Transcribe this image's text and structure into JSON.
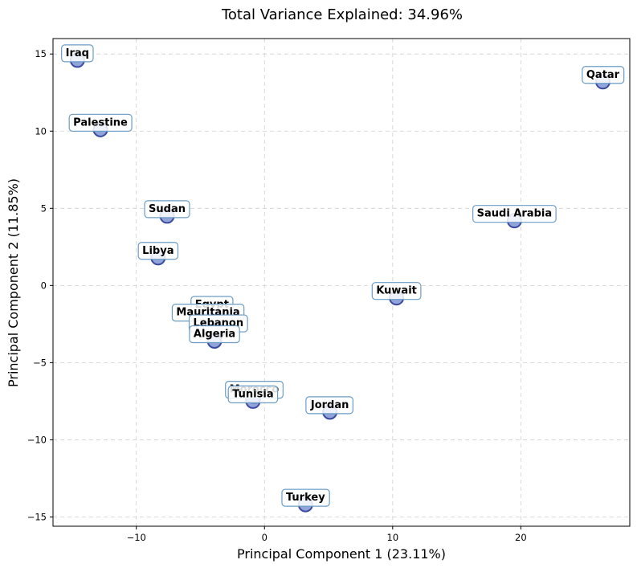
{
  "chart_data": {
    "type": "scatter",
    "title": "Total Variance Explained: 34.96%",
    "xlabel": "Principal Component 1 (23.11%)",
    "ylabel": "Principal Component 2 (11.85%)",
    "xlim": [
      -16.5,
      28.5
    ],
    "ylim": [
      -15.6,
      16.0
    ],
    "xticks": [
      -10,
      0,
      10,
      20
    ],
    "xtick_labels": [
      "−10",
      "0",
      "10",
      "20"
    ],
    "yticks": [
      -15,
      -10,
      -5,
      0,
      5,
      10,
      15
    ],
    "ytick_labels": [
      "−15",
      "−10",
      "−5",
      "0",
      "5",
      "10",
      "15"
    ],
    "grid": true,
    "point_color": "#7f95d4",
    "point_edge_color": "#3a4aa0",
    "label_box_border": "#6a9cc6",
    "points": [
      {
        "name": "Iraq",
        "x": -14.6,
        "y": 14.6
      },
      {
        "name": "Palestine",
        "x": -12.8,
        "y": 10.1
      },
      {
        "name": "Qatar",
        "x": 26.4,
        "y": 13.2
      },
      {
        "name": "Sudan",
        "x": -7.6,
        "y": 4.5
      },
      {
        "name": "Saudi Arabia",
        "x": 19.5,
        "y": 4.2
      },
      {
        "name": "Libya",
        "x": -8.3,
        "y": 1.8
      },
      {
        "name": "Kuwait",
        "x": 10.3,
        "y": -0.8
      },
      {
        "name": "Egypt",
        "x": -4.1,
        "y": -1.7
      },
      {
        "name": "Mauritania",
        "x": -4.4,
        "y": -2.2
      },
      {
        "name": "Lebanon",
        "x": -3.6,
        "y": -2.9
      },
      {
        "name": "Algeria",
        "x": -3.9,
        "y": -3.6
      },
      {
        "name": "Morocco",
        "x": -0.8,
        "y": -7.2
      },
      {
        "name": "Tunisia",
        "x": -0.9,
        "y": -7.5
      },
      {
        "name": "Jordan",
        "x": 5.1,
        "y": -8.2
      },
      {
        "name": "Turkey",
        "x": 3.2,
        "y": -14.2
      }
    ]
  }
}
